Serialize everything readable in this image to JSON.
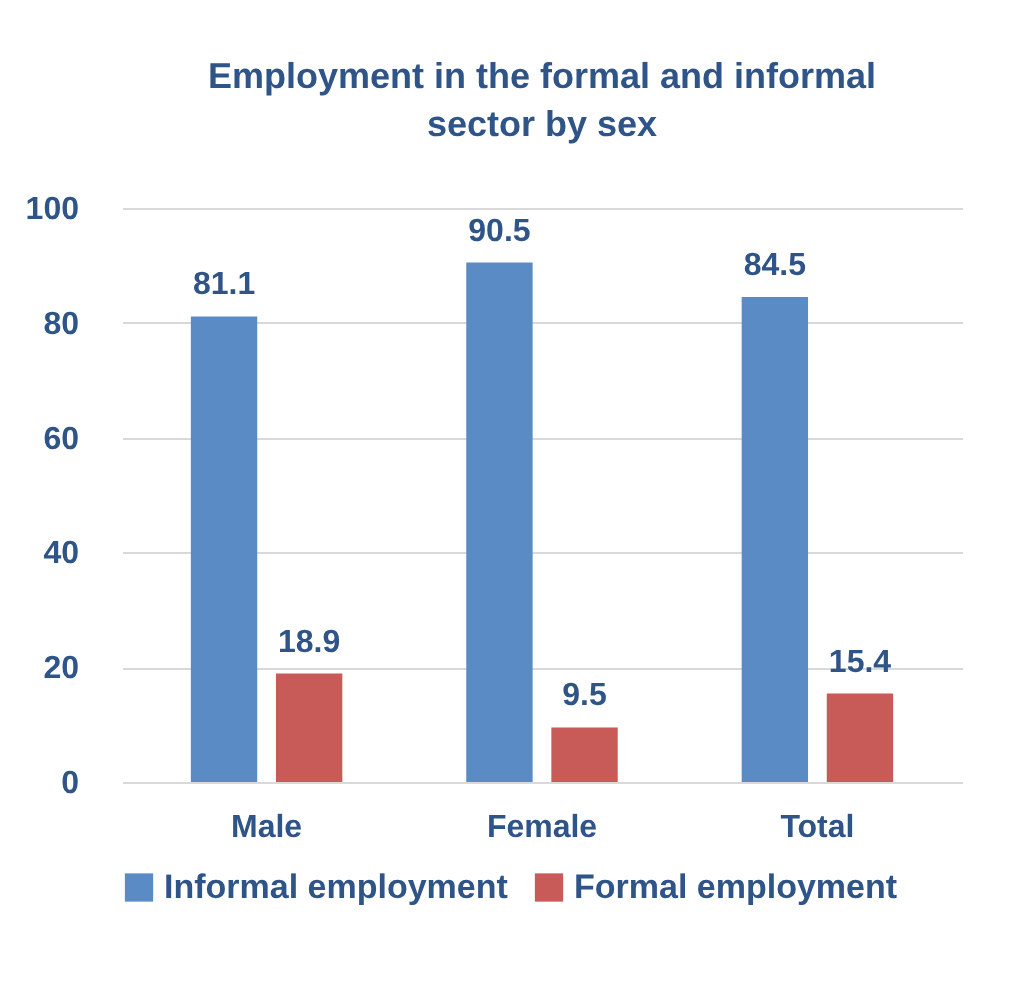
{
  "chart_data": {
    "type": "bar",
    "title": "Employment in the formal and informal sector by sex",
    "categories": [
      "Male",
      "Female",
      "Total"
    ],
    "series": [
      {
        "name": "Informal employment",
        "color": "#5b8bc5",
        "values": [
          81.1,
          90.5,
          84.5
        ]
      },
      {
        "name": "Formal employment",
        "color": "#c85a57",
        "values": [
          18.9,
          9.5,
          15.4
        ]
      }
    ],
    "ylim": [
      0,
      100
    ],
    "yticks": [
      0,
      20,
      40,
      60,
      80,
      100
    ],
    "grid": "y",
    "legend": "bottom",
    "data_labels": true
  }
}
